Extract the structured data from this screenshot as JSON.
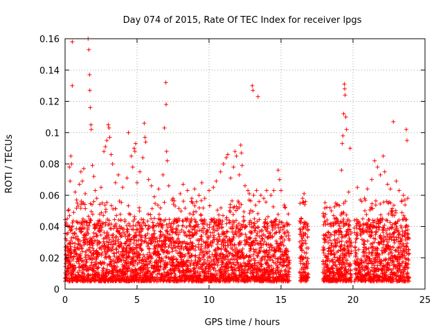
{
  "chart_data": {
    "type": "scatter",
    "title": "Day 074 of 2015, Rate Of TEC Index for receiver lpgs",
    "xlabel": "GPS time / hours",
    "ylabel": "ROTI / TECUs",
    "xlim": [
      0,
      25
    ],
    "ylim": [
      0,
      0.16
    ],
    "xticks": [
      0,
      5,
      10,
      15,
      20,
      25
    ],
    "xtick_labels": [
      "0",
      "5",
      "10",
      "15",
      "20",
      "25"
    ],
    "yticks": [
      0,
      0.02,
      0.04,
      0.06,
      0.08,
      0.1,
      0.12,
      0.14,
      0.16
    ],
    "ytick_labels": [
      "0",
      "0.02",
      "0.04",
      "0.06",
      "0.08",
      "0.1",
      "0.12",
      "0.14",
      "0.16"
    ],
    "grid": true,
    "marker": "+",
    "series_color": "#ff0000",
    "series": [
      {
        "name": "ROTI",
        "points": [
          [
            0.2,
            0.036
          ],
          [
            0.3,
            0.078
          ],
          [
            0.35,
            0.069
          ],
          [
            0.4,
            0.085
          ],
          [
            0.45,
            0.08
          ],
          [
            0.5,
            0.158
          ],
          [
            0.5,
            0.13
          ],
          [
            0.6,
            0.049
          ],
          [
            0.7,
            0.062
          ],
          [
            0.8,
            0.057
          ],
          [
            1.0,
            0.067
          ],
          [
            1.1,
            0.075
          ],
          [
            1.2,
            0.069
          ],
          [
            1.3,
            0.077
          ],
          [
            1.4,
            0.061
          ],
          [
            1.6,
            0.16
          ],
          [
            1.65,
            0.153
          ],
          [
            1.7,
            0.137
          ],
          [
            1.72,
            0.127
          ],
          [
            1.75,
            0.116
          ],
          [
            1.8,
            0.105
          ],
          [
            1.82,
            0.102
          ],
          [
            1.9,
            0.079
          ],
          [
            2.0,
            0.072
          ],
          [
            2.1,
            0.063
          ],
          [
            2.2,
            0.058
          ],
          [
            2.5,
            0.065
          ],
          [
            2.7,
            0.088
          ],
          [
            2.8,
            0.091
          ],
          [
            2.9,
            0.095
          ],
          [
            3.0,
            0.105
          ],
          [
            3.05,
            0.103
          ],
          [
            3.1,
            0.097
          ],
          [
            3.2,
            0.086
          ],
          [
            3.3,
            0.08
          ],
          [
            3.5,
            0.068
          ],
          [
            3.7,
            0.073
          ],
          [
            4.0,
            0.065
          ],
          [
            4.3,
            0.071
          ],
          [
            4.4,
            0.1
          ],
          [
            4.6,
            0.085
          ],
          [
            4.7,
            0.078
          ],
          [
            4.8,
            0.09
          ],
          [
            4.85,
            0.088
          ],
          [
            4.9,
            0.093
          ],
          [
            5.0,
            0.068
          ],
          [
            5.2,
            0.075
          ],
          [
            5.4,
            0.084
          ],
          [
            5.5,
            0.106
          ],
          [
            5.55,
            0.097
          ],
          [
            5.6,
            0.094
          ],
          [
            5.8,
            0.07
          ],
          [
            6.0,
            0.066
          ],
          [
            6.2,
            0.059
          ],
          [
            6.5,
            0.064
          ],
          [
            6.8,
            0.073
          ],
          [
            6.9,
            0.103
          ],
          [
            7.0,
            0.132
          ],
          [
            7.02,
            0.118
          ],
          [
            7.05,
            0.088
          ],
          [
            7.1,
            0.082
          ],
          [
            7.2,
            0.066
          ],
          [
            7.5,
            0.058
          ],
          [
            8.0,
            0.061
          ],
          [
            8.2,
            0.067
          ],
          [
            8.5,
            0.063
          ],
          [
            8.8,
            0.058
          ],
          [
            9.0,
            0.064
          ],
          [
            9.3,
            0.06
          ],
          [
            9.5,
            0.068
          ],
          [
            9.7,
            0.058
          ],
          [
            10.0,
            0.063
          ],
          [
            10.3,
            0.065
          ],
          [
            10.5,
            0.069
          ],
          [
            10.8,
            0.075
          ],
          [
            11.0,
            0.08
          ],
          [
            11.2,
            0.084
          ],
          [
            11.3,
            0.086
          ],
          [
            11.5,
            0.071
          ],
          [
            11.7,
            0.078
          ],
          [
            11.8,
            0.088
          ],
          [
            11.9,
            0.085
          ],
          [
            12.1,
            0.073
          ],
          [
            12.2,
            0.092
          ],
          [
            12.25,
            0.087
          ],
          [
            12.3,
            0.079
          ],
          [
            12.5,
            0.066
          ],
          [
            12.7,
            0.063
          ],
          [
            12.8,
            0.061
          ],
          [
            13.0,
            0.13
          ],
          [
            13.05,
            0.127
          ],
          [
            13.1,
            0.06
          ],
          [
            13.3,
            0.063
          ],
          [
            13.4,
            0.123
          ],
          [
            13.6,
            0.06
          ],
          [
            13.8,
            0.058
          ],
          [
            14.0,
            0.063
          ],
          [
            14.3,
            0.06
          ],
          [
            14.5,
            0.063
          ],
          [
            14.8,
            0.076
          ],
          [
            14.9,
            0.07
          ],
          [
            15.0,
            0.063
          ],
          [
            15.3,
            0.052
          ],
          [
            15.5,
            0.048
          ],
          [
            16.5,
            0.058
          ],
          [
            16.6,
            0.061
          ],
          [
            16.7,
            0.056
          ],
          [
            18.0,
            0.046
          ],
          [
            18.4,
            0.052
          ],
          [
            18.8,
            0.055
          ],
          [
            19.2,
            0.076
          ],
          [
            19.25,
            0.093
          ],
          [
            19.3,
            0.098
          ],
          [
            19.35,
            0.112
          ],
          [
            19.4,
            0.131
          ],
          [
            19.42,
            0.128
          ],
          [
            19.45,
            0.124
          ],
          [
            19.5,
            0.11
          ],
          [
            19.55,
            0.102
          ],
          [
            19.7,
            0.062
          ],
          [
            19.8,
            0.09
          ],
          [
            20.3,
            0.065
          ],
          [
            20.5,
            0.057
          ],
          [
            20.8,
            0.058
          ],
          [
            21.0,
            0.064
          ],
          [
            21.3,
            0.07
          ],
          [
            21.5,
            0.082
          ],
          [
            21.7,
            0.078
          ],
          [
            21.9,
            0.073
          ],
          [
            22.1,
            0.085
          ],
          [
            22.2,
            0.075
          ],
          [
            22.4,
            0.067
          ],
          [
            22.6,
            0.064
          ],
          [
            22.8,
            0.107
          ],
          [
            23.0,
            0.069
          ],
          [
            23.2,
            0.063
          ],
          [
            23.5,
            0.06
          ],
          [
            23.6,
            0.057
          ],
          [
            23.7,
            0.102
          ],
          [
            23.75,
            0.095
          ],
          [
            23.8,
            0.058
          ]
        ],
        "dense_band": {
          "note": "dense cloud of ROTI samples between 0.005 and 0.05 TECUs over these hour intervals",
          "intervals": [
            [
              0.0,
              15.6
            ],
            [
              16.3,
              16.9
            ],
            [
              17.9,
              19.9
            ],
            [
              20.1,
              23.9
            ]
          ],
          "typical_range": [
            0.005,
            0.045
          ]
        }
      }
    ]
  }
}
